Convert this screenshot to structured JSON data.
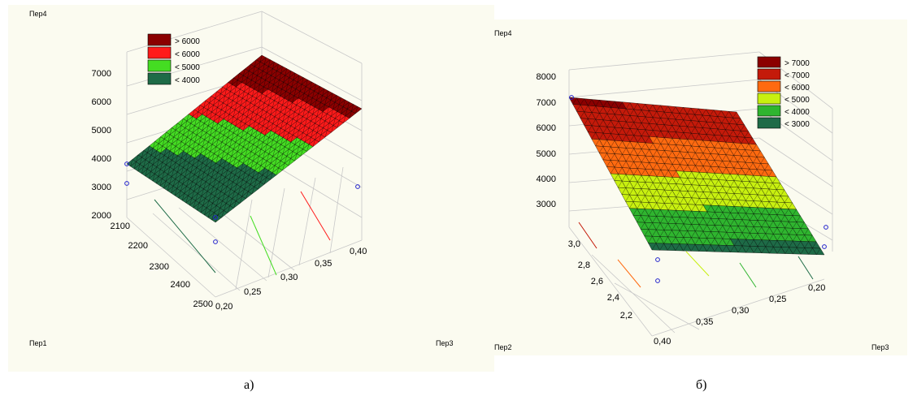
{
  "chart_data": [
    {
      "id": "a",
      "type": "surface3d",
      "caption": "а)",
      "zlabel": "Пер4",
      "xlabel": "Пер1",
      "ylabel": "Пер3",
      "zlim": [
        2000,
        7000
      ],
      "zticks": [
        "7000",
        "6000",
        "5000",
        "4000",
        "3000",
        "2000"
      ],
      "xticks": [
        "2100",
        "2200",
        "2300",
        "2400",
        "2500"
      ],
      "yticks": [
        "0,20",
        "0,25",
        "0,30",
        "0,35",
        "0,40"
      ],
      "legend": [
        {
          "label": "> 6000",
          "color": "#8b0000"
        },
        {
          "label": "< 6000",
          "color": "#ff1a1a"
        },
        {
          "label": "< 5000",
          "color": "#44dd22"
        },
        {
          "label": "< 4000",
          "color": "#1e6b47"
        }
      ],
      "corner_values": [
        3500,
        6800,
        6300,
        2300
      ],
      "points": [
        3600,
        3000,
        2300,
        2900
      ]
    },
    {
      "id": "b",
      "type": "surface3d",
      "caption": "б)",
      "zlabel": "Пер4",
      "xlabel": "Пер2",
      "ylabel": "Пер3",
      "zlim": [
        2000,
        8000
      ],
      "zticks": [
        "8000",
        "7000",
        "6000",
        "5000",
        "4000",
        "3000"
      ],
      "xticks": [
        "3,0",
        "2,8",
        "2,6",
        "2,4",
        "2,2"
      ],
      "yticks": [
        "0,40",
        "0,35",
        "0,30",
        "0,25",
        "0,20"
      ],
      "legend": [
        {
          "label": "> 7000",
          "color": "#8b0000"
        },
        {
          "label": "< 7000",
          "color": "#c41a0a"
        },
        {
          "label": "< 6000",
          "color": "#ff6a10"
        },
        {
          "label": "< 5000",
          "color": "#c8f010"
        },
        {
          "label": "< 4000",
          "color": "#2fb52f"
        },
        {
          "label": "< 3000",
          "color": "#1e6b47"
        }
      ],
      "corner_values": [
        7200,
        6900,
        2500,
        2900
      ],
      "points": [
        7200,
        2500,
        2700,
        2300
      ]
    }
  ]
}
